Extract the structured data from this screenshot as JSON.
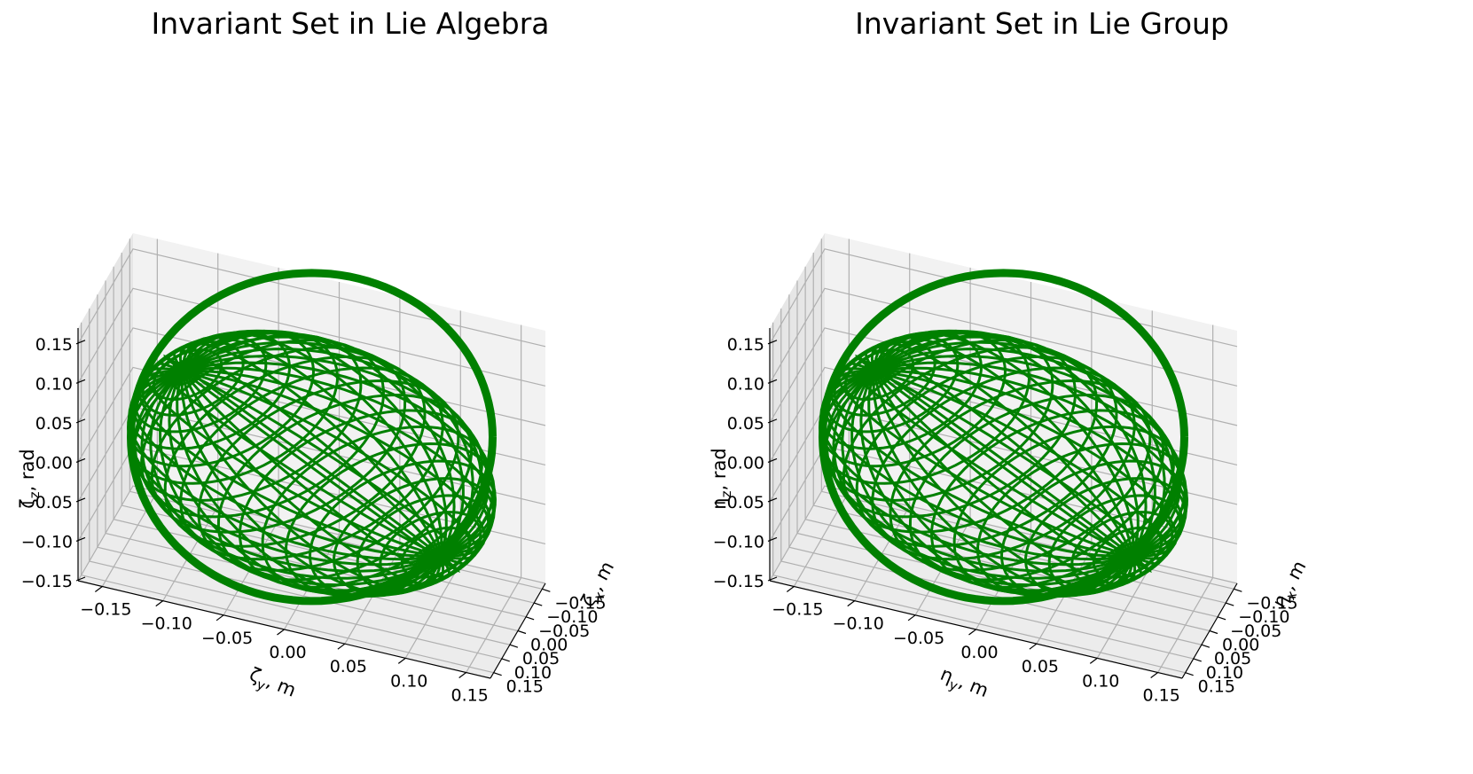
{
  "chart_data": [
    {
      "type": "3d-wireframe",
      "title": "Invariant Set in Lie Algebra",
      "xlabel": "ζx, m",
      "ylabel": "ζy, m",
      "zlabel": "ζz, rad",
      "xlabel_parts": {
        "sym": "ζ",
        "sub": "x",
        "unit": ", m"
      },
      "ylabel_parts": {
        "sym": "ζ",
        "sub": "y",
        "unit": ", m"
      },
      "zlabel_parts": {
        "sym": "ζ",
        "sub": "z",
        "unit": ", rad"
      },
      "xlim": [
        -0.17,
        0.17
      ],
      "ylim": [
        -0.17,
        0.17
      ],
      "zlim": [
        -0.15,
        0.17
      ],
      "x_ticks": [
        "−0.15",
        "−0.10",
        "−0.05",
        "0.00",
        "0.05",
        "0.10",
        "0.15"
      ],
      "y_ticks": [
        "−0.15",
        "−0.10",
        "−0.05",
        "0.00",
        "0.05",
        "0.10",
        "0.15"
      ],
      "z_ticks": [
        "−0.15",
        "−0.10",
        "−0.05",
        "0.00",
        "0.05",
        "0.10",
        "0.15"
      ],
      "surface": {
        "shape": "ellipsoid",
        "radii": [
          0.15,
          0.15,
          0.15
        ],
        "center": [
          0,
          0,
          0
        ]
      },
      "color": "#008000",
      "grid": true
    },
    {
      "type": "3d-wireframe",
      "title": "Invariant Set in Lie Group",
      "xlabel": "ηx, m",
      "ylabel": "ηy, m",
      "zlabel": "ηz, rad",
      "xlabel_parts": {
        "sym": "η",
        "sub": "x",
        "unit": ", m"
      },
      "ylabel_parts": {
        "sym": "η",
        "sub": "y",
        "unit": ", m"
      },
      "zlabel_parts": {
        "sym": "η",
        "sub": "z",
        "unit": ", rad"
      },
      "xlim": [
        -0.17,
        0.17
      ],
      "ylim": [
        -0.17,
        0.17
      ],
      "zlim": [
        -0.15,
        0.17
      ],
      "x_ticks": [
        "−0.15",
        "−0.10",
        "−0.05",
        "0.00",
        "0.05",
        "0.10",
        "0.15"
      ],
      "y_ticks": [
        "−0.15",
        "−0.10",
        "−0.05",
        "0.00",
        "0.05",
        "0.10",
        "0.15"
      ],
      "z_ticks": [
        "−0.15",
        "−0.10",
        "−0.05",
        "0.00",
        "0.05",
        "0.10",
        "0.15"
      ],
      "surface": {
        "shape": "ellipsoid",
        "radii": [
          0.15,
          0.15,
          0.15
        ],
        "center": [
          0,
          0,
          0
        ]
      },
      "color": "#008000",
      "grid": true
    }
  ]
}
